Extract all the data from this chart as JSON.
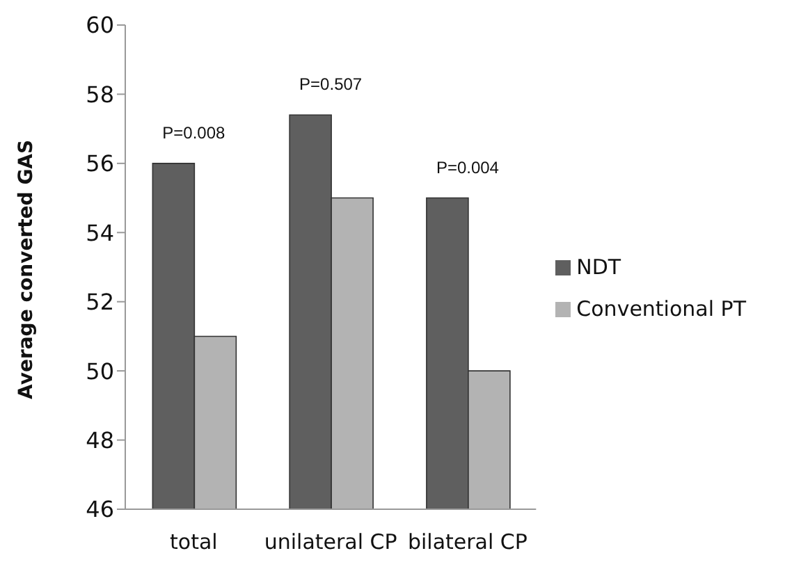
{
  "chart_data": {
    "type": "bar",
    "ylabel": "Average converted GAS",
    "categories": [
      "total",
      "unilateral CP",
      "bilateral CP"
    ],
    "series": [
      {
        "name": "NDT",
        "color": "#5f5f5f",
        "values": [
          56,
          57.4,
          55
        ]
      },
      {
        "name": "Conventional PT",
        "color": "#b3b3b3",
        "values": [
          51,
          55,
          50
        ]
      }
    ],
    "ylim": [
      46,
      60
    ],
    "yticks": [
      46,
      48,
      50,
      52,
      54,
      56,
      58,
      60
    ],
    "grid": false,
    "legend": "right",
    "annotations": [
      "P=0.008",
      "P=0.507",
      "P=0.004"
    ]
  }
}
